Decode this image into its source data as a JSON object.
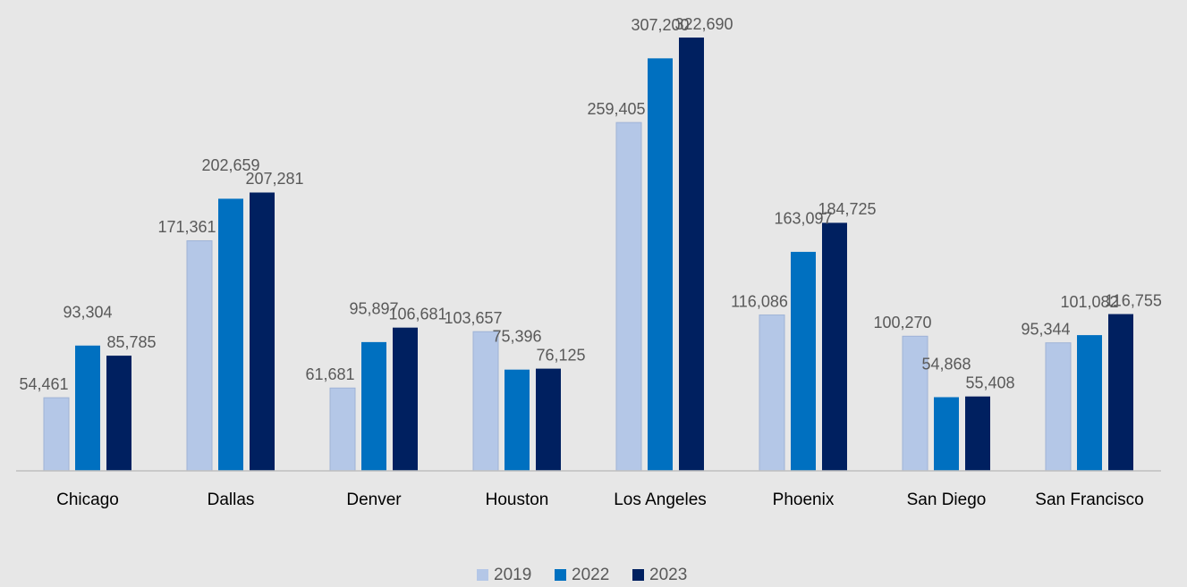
{
  "chart_data": {
    "type": "bar",
    "categories": [
      "Chicago",
      "Dallas",
      "Denver",
      "Houston",
      "Los Angeles",
      "Phoenix",
      "San Diego",
      "San Francisco"
    ],
    "series": [
      {
        "name": "2019",
        "color": "#b4c7e7",
        "values": [
          54461,
          171361,
          61681,
          103657,
          259405,
          116086,
          100270,
          95344
        ]
      },
      {
        "name": "2022",
        "color": "#0070c0",
        "values": [
          93304,
          202659,
          95897,
          75396,
          307200,
          163097,
          54868,
          101082
        ]
      },
      {
        "name": "2023",
        "color": "#002060",
        "values": [
          85785,
          207281,
          106681,
          76125,
          322690,
          184725,
          55408,
          116755
        ]
      }
    ],
    "value_labels": [
      [
        "54,461",
        "171,361",
        "61,681",
        "103,657",
        "259,405",
        "116,086",
        "100,270",
        "95,344"
      ],
      [
        "93,304",
        "202,659",
        "95,897",
        "75,396",
        "307,200",
        "163,097",
        "54,868",
        "101,082"
      ],
      [
        "85,785",
        "207,281",
        "106,681",
        "76,125",
        "322,690",
        "184,725",
        "55,408",
        "116,755"
      ]
    ],
    "ylim": [
      0,
      350000
    ],
    "legend": "bottom"
  }
}
